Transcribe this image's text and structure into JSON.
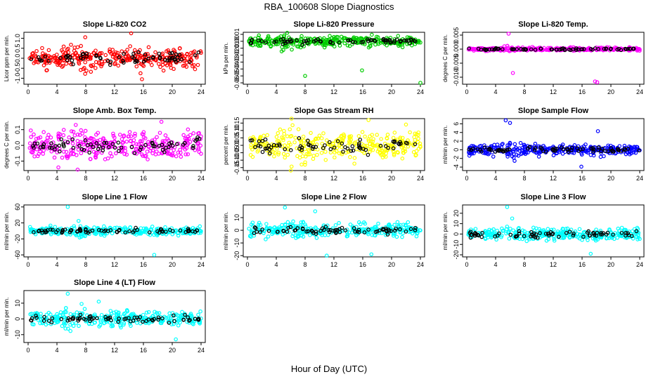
{
  "figure": {
    "title": "RBA_100608  Slope Diagnostics",
    "xlabel": "Hour of Day (UTC)"
  },
  "chart_data": [
    {
      "type": "scatter",
      "title": "Slope Li-820 CO2",
      "ylabel": "Licor ppm per min.",
      "xlim": [
        0,
        24
      ],
      "ylim": [
        -1.3,
        1.3
      ],
      "xticks": [
        0,
        4,
        8,
        12,
        16,
        20,
        24
      ],
      "yticks": [
        -1.0,
        -0.5,
        0.0,
        0.5,
        1.0
      ],
      "ytick_labels": [
        "-1.0",
        "-0.5",
        "0.0",
        "0.5",
        "1.0"
      ],
      "color": "#ff0000",
      "spread": 0.35,
      "outliers": [
        [
          14.3,
          1.25
        ],
        [
          15.6,
          -0.75
        ],
        [
          15.8,
          -1.05
        ],
        [
          8.1,
          -0.62
        ]
      ]
    },
    {
      "type": "scatter",
      "title": "Slope Li-820 Pressure",
      "ylabel": "kPa per min.",
      "xlim": [
        0,
        24
      ],
      "ylim": [
        -0.062,
        0.013
      ],
      "xticks": [
        0,
        4,
        8,
        12,
        16,
        20,
        24
      ],
      "yticks": [
        -0.06,
        -0.05,
        -0.04,
        -0.03,
        -0.02,
        -0.01,
        0.0,
        0.01
      ],
      "ytick_labels": [
        "-0.06",
        "-0.05",
        "-0.04",
        "-0.03",
        "-0.02",
        "-0.01",
        "0.00",
        "0.01"
      ],
      "color": "#00cc00",
      "spread": 0.005,
      "outliers": [
        [
          8.0,
          -0.05
        ],
        [
          15.9,
          -0.042
        ],
        [
          24.0,
          -0.06
        ]
      ]
    },
    {
      "type": "scatter",
      "title": "Slope Li-820 Temp.",
      "ylabel": "degrees C per min.",
      "xlim": [
        0,
        24
      ],
      "ylim": [
        -0.0125,
        0.006
      ],
      "xticks": [
        0,
        4,
        8,
        12,
        16,
        20,
        24
      ],
      "yticks": [
        -0.01,
        -0.005,
        0.0,
        0.005
      ],
      "ytick_labels": [
        "-0.010",
        "-0.005",
        "0.000",
        "0.005"
      ],
      "color": "#ff00ff",
      "spread": 0.0004,
      "outliers": [
        [
          5.8,
          0.0055
        ],
        [
          6.4,
          -0.0085
        ],
        [
          17.8,
          -0.0115
        ],
        [
          18.1,
          -0.0118
        ]
      ]
    },
    {
      "type": "scatter",
      "title": "Slope Amb. Box Temp.",
      "ylabel": "degrees C per min.",
      "xlim": [
        0,
        24
      ],
      "ylim": [
        -0.16,
        0.17
      ],
      "xticks": [
        0,
        4,
        8,
        12,
        16,
        20,
        24
      ],
      "yticks": [
        -0.1,
        0.0,
        0.1
      ],
      "ytick_labels": [
        "-0.1",
        "0.0",
        "0.1"
      ],
      "color": "#ff00ff",
      "spread": 0.06,
      "outliers": [
        [
          18.5,
          0.15
        ],
        [
          4.2,
          -0.14
        ]
      ]
    },
    {
      "type": "scatter",
      "title": "Slope Gas Stream RH",
      "ylabel": "percent per min.",
      "xlim": [
        0,
        24
      ],
      "ylim": [
        -0.17,
        0.18
      ],
      "xticks": [
        0,
        4,
        8,
        12,
        16,
        20,
        24
      ],
      "yticks": [
        -0.15,
        -0.1,
        -0.05,
        0.0,
        0.05,
        0.1,
        0.15
      ],
      "ytick_labels": [
        "-0.15",
        "-0.10",
        "-0.05",
        "0.00",
        "0.05",
        "0.10",
        "0.15"
      ],
      "color": "#ffff00",
      "spread": 0.06,
      "outliers": [
        [
          16.8,
          0.17
        ],
        [
          22.0,
          0.14
        ]
      ]
    },
    {
      "type": "scatter",
      "title": "Slope Sample Flow",
      "ylabel": "ml/min per min.",
      "xlim": [
        0,
        24
      ],
      "ylim": [
        -4.8,
        7.2
      ],
      "xticks": [
        0,
        4,
        8,
        12,
        16,
        20,
        24
      ],
      "yticks": [
        -4,
        -2,
        0,
        2,
        4,
        6
      ],
      "ytick_labels": [
        "-4",
        "-2",
        "0",
        "2",
        "4",
        "6"
      ],
      "color": "#0000ff",
      "spread": 0.9,
      "outliers": [
        [
          5.4,
          6.8
        ],
        [
          6.0,
          6.2
        ],
        [
          18.2,
          4.3
        ],
        [
          15.9,
          -3.9
        ]
      ]
    },
    {
      "type": "scatter",
      "title": "Slope Line 1 Flow",
      "ylabel": "ml/min per min.",
      "xlim": [
        0,
        24
      ],
      "ylim": [
        -65,
        65
      ],
      "xticks": [
        0,
        4,
        8,
        12,
        16,
        20,
        24
      ],
      "yticks": [
        -60,
        -20,
        20,
        60
      ],
      "ytick_labels": [
        "-60",
        "-20",
        "20",
        "60"
      ],
      "color": "#00ffff",
      "spread": 7,
      "outliers": [
        [
          5.5,
          60
        ],
        [
          17.5,
          -60
        ],
        [
          7.0,
          25
        ]
      ]
    },
    {
      "type": "scatter",
      "title": "Slope Line 2 Flow",
      "ylabel": "ml/min per min.",
      "xlim": [
        0,
        24
      ],
      "ylim": [
        -21,
        20
      ],
      "xticks": [
        0,
        4,
        8,
        12,
        16,
        20,
        24
      ],
      "yticks": [
        -20,
        -10,
        0,
        10
      ],
      "ytick_labels": [
        "-20",
        "-10",
        "0",
        "10"
      ],
      "color": "#00ffff",
      "spread": 3.5,
      "outliers": [
        [
          5.2,
          18
        ],
        [
          11.0,
          -20
        ],
        [
          17.2,
          -19
        ],
        [
          9.4,
          15
        ]
      ]
    },
    {
      "type": "scatter",
      "title": "Slope Line 3 Flow",
      "ylabel": "ml/min per min.",
      "xlim": [
        0,
        24
      ],
      "ylim": [
        -22,
        28
      ],
      "xticks": [
        0,
        4,
        8,
        12,
        16,
        20,
        24
      ],
      "yticks": [
        -20,
        -10,
        0,
        10,
        20
      ],
      "ytick_labels": [
        "-20",
        "-10",
        "0",
        "10",
        "20"
      ],
      "color": "#00ffff",
      "spread": 4,
      "outliers": [
        [
          5.6,
          26
        ],
        [
          17.2,
          -19
        ],
        [
          6.3,
          15
        ]
      ]
    },
    {
      "type": "scatter",
      "title": "Slope Line 4 (LT) Flow",
      "ylabel": "ml/min per min.",
      "xlim": [
        0,
        24
      ],
      "ylim": [
        -15,
        18
      ],
      "xticks": [
        0,
        4,
        8,
        12,
        16,
        20,
        24
      ],
      "yticks": [
        -10,
        0,
        10
      ],
      "ytick_labels": [
        "-10",
        "0",
        "10"
      ],
      "color": "#00ffff",
      "spread": 3.2,
      "outliers": [
        [
          5.5,
          16
        ],
        [
          20.5,
          -13
        ],
        [
          9.8,
          11
        ]
      ]
    }
  ]
}
